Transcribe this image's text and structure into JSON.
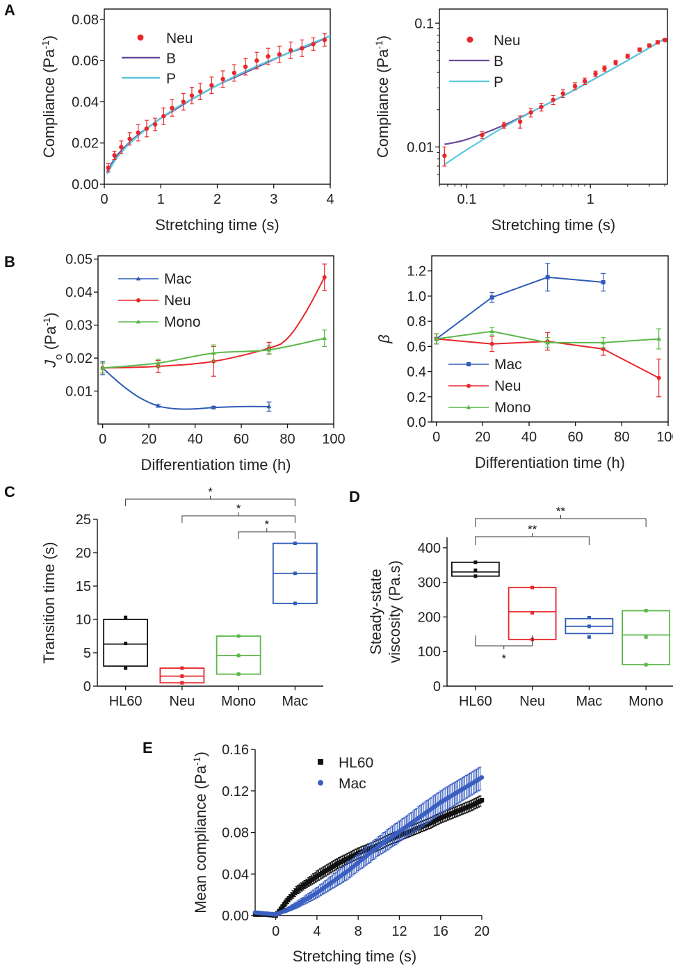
{
  "panels": {
    "A": "A",
    "B": "B",
    "C": "C",
    "D": "D",
    "E": "E"
  },
  "chart_data": [
    {
      "id": "A1",
      "type": "line",
      "xlabel": "Stretching time (s)",
      "ylabel": "Compliance (Pa-1)",
      "xlim": [
        0,
        4
      ],
      "ylim": [
        0,
        0.085
      ],
      "xticks": [
        0,
        1,
        2,
        3,
        4
      ],
      "xtick_labels": [
        "0",
        "1",
        "2",
        "3",
        "4"
      ],
      "yticks": [
        0,
        0.02,
        0.04,
        0.06,
        0.08
      ],
      "ytick_labels": [
        "0.00",
        "0.02",
        "0.04",
        "0.06",
        "0.08"
      ],
      "scatter_series": [
        {
          "name": "Neu",
          "color": "#e8272a",
          "marker": "circle",
          "x": [
            0.07,
            0.18,
            0.3,
            0.45,
            0.6,
            0.75,
            0.9,
            1.05,
            1.2,
            1.4,
            1.55,
            1.7,
            1.9,
            2.1,
            2.3,
            2.5,
            2.7,
            2.9,
            3.1,
            3.3,
            3.5,
            3.7,
            3.9
          ],
          "y": [
            0.008,
            0.014,
            0.018,
            0.022,
            0.025,
            0.027,
            0.029,
            0.033,
            0.037,
            0.04,
            0.043,
            0.045,
            0.048,
            0.051,
            0.054,
            0.057,
            0.06,
            0.062,
            0.063,
            0.065,
            0.066,
            0.068,
            0.07
          ],
          "err": [
            0.002,
            0.002,
            0.003,
            0.003,
            0.004,
            0.004,
            0.003,
            0.004,
            0.004,
            0.004,
            0.004,
            0.004,
            0.004,
            0.004,
            0.004,
            0.004,
            0.004,
            0.004,
            0.004,
            0.004,
            0.004,
            0.003,
            0.003
          ]
        }
      ],
      "line_series": [
        {
          "name": "B",
          "color": "#6a4c9c",
          "x": [
            0.05,
            0.2,
            0.4,
            0.6,
            0.8,
            1.0,
            1.3,
            1.6,
            2.0,
            2.4,
            2.8,
            3.2,
            3.6,
            4.0
          ],
          "y": [
            0.006,
            0.013,
            0.019,
            0.024,
            0.028,
            0.032,
            0.037,
            0.042,
            0.048,
            0.053,
            0.058,
            0.063,
            0.067,
            0.072
          ]
        },
        {
          "name": "P",
          "color": "#5cc8dc",
          "x": [
            0.05,
            0.2,
            0.4,
            0.6,
            0.8,
            1.0,
            1.3,
            1.6,
            2.0,
            2.4,
            2.8,
            3.2,
            3.6,
            4.0
          ],
          "y": [
            0.005,
            0.012,
            0.0185,
            0.0235,
            0.028,
            0.032,
            0.0375,
            0.042,
            0.048,
            0.0535,
            0.0585,
            0.063,
            0.0675,
            0.072
          ]
        }
      ],
      "legend": [
        "Neu",
        "B",
        "P"
      ]
    },
    {
      "id": "A2",
      "type": "line",
      "log_x": true,
      "log_y": true,
      "xlabel": "Stretching time (s)",
      "ylabel": "Compliance (Pa-1)",
      "xlim": [
        0.06,
        4.2
      ],
      "ylim": [
        0.005,
        0.13
      ],
      "xticks": [
        0.1,
        1
      ],
      "xtick_labels": [
        "0.1",
        "1"
      ],
      "yticks": [
        0.01,
        0.1
      ],
      "ytick_labels": [
        "0.01",
        "0.1"
      ],
      "scatter_series": [
        {
          "name": "Neu",
          "color": "#e8272a",
          "marker": "circle",
          "x": [
            0.066,
            0.133,
            0.2,
            0.27,
            0.33,
            0.4,
            0.5,
            0.6,
            0.75,
            0.9,
            1.1,
            1.3,
            1.6,
            2.0,
            2.5,
            3.0,
            3.5,
            4.0
          ],
          "y": [
            0.0085,
            0.0125,
            0.015,
            0.016,
            0.019,
            0.021,
            0.024,
            0.027,
            0.031,
            0.034,
            0.039,
            0.043,
            0.048,
            0.054,
            0.061,
            0.066,
            0.07,
            0.073
          ],
          "err": [
            0.0015,
            0.0008,
            0.0008,
            0.0018,
            0.0015,
            0.0015,
            0.002,
            0.002,
            0.002,
            0.002,
            0.002,
            0.002,
            0.002,
            0.002,
            0.002,
            0.002,
            0.002,
            0.002
          ]
        }
      ],
      "line_series": [
        {
          "name": "B",
          "color": "#6a4c9c",
          "x": [
            0.066,
            0.1,
            0.2,
            0.4,
            0.7,
            1.0,
            2.0,
            4.0
          ],
          "y": [
            0.0105,
            0.0115,
            0.015,
            0.021,
            0.028,
            0.034,
            0.05,
            0.075
          ]
        },
        {
          "name": "P",
          "color": "#5cc8dc",
          "x": [
            0.066,
            0.1,
            0.2,
            0.4,
            0.7,
            1.0,
            2.0,
            4.0
          ],
          "y": [
            0.0072,
            0.0095,
            0.0145,
            0.021,
            0.028,
            0.034,
            0.05,
            0.075
          ]
        }
      ],
      "legend": [
        "Neu",
        "B",
        "P"
      ]
    },
    {
      "id": "B1",
      "type": "line",
      "xlabel": "Differentiation time (h)",
      "ylabel": "Jo (Pa-1)",
      "xlim": [
        -2,
        100
      ],
      "ylim": [
        0.0,
        0.051
      ],
      "xticks": [
        0,
        20,
        40,
        60,
        80,
        100
      ],
      "xtick_labels": [
        "0",
        "20",
        "40",
        "60",
        "80",
        "100"
      ],
      "yticks": [
        0.01,
        0.02,
        0.03,
        0.04,
        0.05
      ],
      "ytick_labels": [
        "0.01",
        "0.02",
        "0.03",
        "0.04",
        "0.05"
      ],
      "series": [
        {
          "name": "Mac",
          "color": "#2e5bb7",
          "marker": "triangle",
          "x": [
            0,
            24,
            48,
            72
          ],
          "y": [
            0.017,
            0.0055,
            0.005,
            0.0053
          ],
          "err": [
            0.002,
            0.0004,
            0.0004,
            0.0014
          ],
          "curve": [
            [
              0,
              0.017
            ],
            [
              8,
              0.012
            ],
            [
              16,
              0.008
            ],
            [
              24,
              0.0055
            ],
            [
              32,
              0.0046
            ],
            [
              40,
              0.0046
            ],
            [
              48,
              0.005
            ],
            [
              60,
              0.0053
            ],
            [
              72,
              0.0053
            ]
          ]
        },
        {
          "name": "Neu",
          "color": "#e8272a",
          "marker": "circle",
          "x": [
            0,
            24,
            48,
            72,
            96
          ],
          "y": [
            0.017,
            0.0175,
            0.019,
            0.023,
            0.0445
          ],
          "err": [
            0.0015,
            0.0018,
            0.0045,
            0.0018,
            0.004
          ],
          "curve": [
            [
              0,
              0.017
            ],
            [
              24,
              0.0175
            ],
            [
              48,
              0.019
            ],
            [
              72,
              0.023
            ],
            [
              80,
              0.026
            ],
            [
              88,
              0.034
            ],
            [
              96,
              0.0445
            ]
          ]
        },
        {
          "name": "Mono",
          "color": "#5cb74a",
          "marker": "triangle",
          "x": [
            0,
            24,
            48,
            72,
            96
          ],
          "y": [
            0.017,
            0.0185,
            0.0215,
            0.0225,
            0.026
          ],
          "err": [
            0.0015,
            0.0012,
            0.0025,
            0.0012,
            0.0025
          ],
          "curve": [
            [
              0,
              0.017
            ],
            [
              24,
              0.0185
            ],
            [
              48,
              0.0215
            ],
            [
              72,
              0.0225
            ],
            [
              96,
              0.026
            ]
          ]
        }
      ],
      "legend": [
        "Mac",
        "Neu",
        "Mono"
      ]
    },
    {
      "id": "B2",
      "type": "line",
      "xlabel": "Differentiation time (h)",
      "ylabel": "β",
      "xlim": [
        -2,
        100
      ],
      "ylim": [
        0.0,
        1.32
      ],
      "xticks": [
        0,
        20,
        40,
        60,
        80,
        100
      ],
      "xtick_labels": [
        "0",
        "20",
        "40",
        "60",
        "80",
        "100"
      ],
      "yticks": [
        0,
        0.2,
        0.4,
        0.6,
        0.8,
        1.0,
        1.2
      ],
      "ytick_labels": [
        "0.0",
        "0.2",
        "0.4",
        "0.6",
        "0.8",
        "1.0",
        "1.2"
      ],
      "series": [
        {
          "name": "Mac",
          "color": "#2e5bb7",
          "marker": "square",
          "x": [
            0,
            24,
            48,
            72
          ],
          "y": [
            0.66,
            0.99,
            1.15,
            1.11
          ],
          "err": [
            0.04,
            0.04,
            0.11,
            0.07
          ]
        },
        {
          "name": "Neu",
          "color": "#e8272a",
          "marker": "circle",
          "x": [
            0,
            24,
            48,
            72,
            96
          ],
          "y": [
            0.66,
            0.62,
            0.64,
            0.58,
            0.35
          ],
          "err": [
            0.04,
            0.06,
            0.07,
            0.05,
            0.15
          ]
        },
        {
          "name": "Mono",
          "color": "#5cb74a",
          "marker": "triangle",
          "x": [
            0,
            24,
            48,
            72,
            96
          ],
          "y": [
            0.66,
            0.72,
            0.63,
            0.63,
            0.66
          ],
          "err": [
            0.04,
            0.03,
            0.04,
            0.04,
            0.08
          ]
        }
      ],
      "legend": [
        "Mac",
        "Neu",
        "Mono"
      ]
    },
    {
      "id": "C",
      "type": "box",
      "ylabel": "Transition time (s)",
      "ylim": [
        0,
        25
      ],
      "yticks": [
        0,
        5,
        10,
        15,
        20,
        25
      ],
      "ytick_labels": [
        "0",
        "5",
        "10",
        "15",
        "20",
        "25"
      ],
      "categories": [
        "HL60",
        "Neu",
        "Mono",
        "Mac"
      ],
      "boxes": [
        {
          "name": "HL60",
          "color": "#111111",
          "q1": 3.0,
          "median": 6.3,
          "q3": 10.0,
          "points": [
            2.7,
            6.4,
            10.3
          ]
        },
        {
          "name": "Neu",
          "color": "#e8272a",
          "q1": 0.5,
          "median": 1.5,
          "q3": 2.7,
          "points": [
            0.5,
            1.5,
            2.7
          ]
        },
        {
          "name": "Mono",
          "color": "#5cb74a",
          "q1": 1.8,
          "median": 4.6,
          "q3": 7.5,
          "points": [
            1.8,
            4.6,
            7.5
          ]
        },
        {
          "name": "Mac",
          "color": "#2e5bb7",
          "q1": 12.4,
          "median": 16.9,
          "q3": 21.4,
          "points": [
            12.4,
            16.9,
            21.4
          ]
        }
      ],
      "significance": [
        {
          "from": "HL60",
          "to": "Mac",
          "label": "*"
        },
        {
          "from": "Neu",
          "to": "Mac",
          "label": "*"
        },
        {
          "from": "Mono",
          "to": "Mac",
          "label": "*"
        }
      ]
    },
    {
      "id": "D",
      "type": "box",
      "ylabel": "Steady-state viscosity (Pa.s)",
      "ylabel_lines": [
        "Steady-state",
        "viscosity (Pa.s)"
      ],
      "ylim": [
        0,
        430
      ],
      "yticks": [
        0,
        100,
        200,
        300,
        400
      ],
      "ytick_labels": [
        "0",
        "100",
        "200",
        "300",
        "400"
      ],
      "categories": [
        "HL60",
        "Neu",
        "Mac",
        "Mono"
      ],
      "boxes": [
        {
          "name": "HL60",
          "color": "#111111",
          "q1": 318,
          "median": 330,
          "q3": 358,
          "points": [
            318,
            335,
            358
          ]
        },
        {
          "name": "Neu",
          "color": "#e8272a",
          "q1": 135,
          "median": 215,
          "q3": 285,
          "points": [
            135,
            212,
            285
          ]
        },
        {
          "name": "Mac",
          "color": "#2e5bb7",
          "q1": 152,
          "median": 173,
          "q3": 195,
          "points": [
            142,
            173,
            198
          ]
        },
        {
          "name": "Mono",
          "color": "#5cb74a",
          "q1": 62,
          "median": 148,
          "q3": 218,
          "points": [
            62,
            142,
            218
          ]
        }
      ],
      "significance": [
        {
          "from": "HL60",
          "to": "Mono",
          "label": "**"
        },
        {
          "from": "HL60",
          "to": "Mac",
          "label": "**"
        },
        {
          "from": "HL60",
          "to": "Neu",
          "label": "*"
        }
      ]
    },
    {
      "id": "E",
      "type": "scatter",
      "xlabel": "Stretching time (s)",
      "ylabel": "Mean compliance (Pa-1)",
      "xlim": [
        -2,
        20
      ],
      "ylim": [
        0,
        0.16
      ],
      "xticks": [
        0,
        4,
        8,
        12,
        16,
        20
      ],
      "xtick_labels": [
        "0",
        "4",
        "8",
        "12",
        "16",
        "20"
      ],
      "yticks": [
        0,
        0.04,
        0.08,
        0.12,
        0.16
      ],
      "ytick_labels": [
        "0.00",
        "0.04",
        "0.08",
        "0.12",
        "0.16"
      ],
      "series": [
        {
          "name": "HL60",
          "color": "#111111",
          "marker": "square",
          "x": [
            -2,
            -1,
            0,
            1,
            2,
            3,
            4,
            5,
            6,
            7,
            8,
            9,
            10,
            11,
            12,
            13,
            14,
            15,
            16,
            17,
            18,
            19,
            20
          ],
          "y": [
            0.001,
            0.001,
            0.0,
            0.013,
            0.024,
            0.031,
            0.038,
            0.044,
            0.05,
            0.055,
            0.06,
            0.064,
            0.068,
            0.073,
            0.077,
            0.081,
            0.085,
            0.089,
            0.094,
            0.098,
            0.102,
            0.106,
            0.111
          ],
          "err": [
            0.0,
            0.0,
            0.0,
            0.003,
            0.004,
            0.004,
            0.005,
            0.005,
            0.005,
            0.005,
            0.005,
            0.005,
            0.005,
            0.005,
            0.005,
            0.005,
            0.005,
            0.005,
            0.005,
            0.005,
            0.005,
            0.005,
            0.005
          ]
        },
        {
          "name": "Mac",
          "color": "#3a5fc0",
          "marker": "circle",
          "x": [
            -2,
            -1,
            0,
            1,
            2,
            3,
            4,
            5,
            6,
            7,
            8,
            9,
            10,
            11,
            12,
            13,
            14,
            15,
            16,
            17,
            18,
            19,
            20
          ],
          "y": [
            0.003,
            0.002,
            0.001,
            0.005,
            0.01,
            0.016,
            0.022,
            0.029,
            0.036,
            0.043,
            0.051,
            0.059,
            0.067,
            0.074,
            0.081,
            0.088,
            0.095,
            0.102,
            0.109,
            0.115,
            0.121,
            0.127,
            0.133
          ],
          "err": [
            0.0,
            0.0,
            0.0,
            0.002,
            0.003,
            0.004,
            0.005,
            0.006,
            0.007,
            0.008,
            0.008,
            0.009,
            0.009,
            0.01,
            0.01,
            0.01,
            0.011,
            0.011,
            0.011,
            0.011,
            0.011,
            0.011,
            0.011
          ]
        }
      ],
      "legend": [
        "HL60",
        "Mac"
      ]
    }
  ]
}
